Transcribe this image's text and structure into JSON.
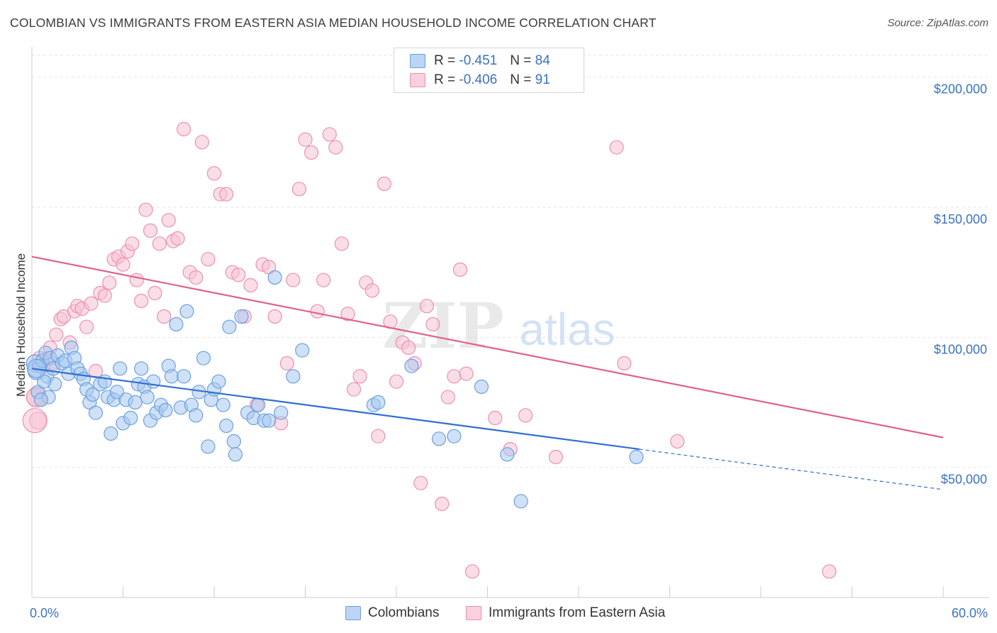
{
  "title": "COLOMBIAN VS IMMIGRANTS FROM EASTERN ASIA MEDIAN HOUSEHOLD INCOME CORRELATION CHART",
  "source": "Source: ZipAtlas.com",
  "watermark": {
    "zip": "ZIP",
    "atlas": "atlas"
  },
  "legend": {
    "rows": [
      {
        "r_label": "R = ",
        "r_value": "-0.451",
        "n_label": "N = ",
        "n_value": "84"
      },
      {
        "r_label": "R = ",
        "r_value": "-0.406",
        "n_label": "N = ",
        "n_value": "91"
      }
    ]
  },
  "colors": {
    "blue_fill": "#a8c8f0",
    "blue_stroke": "#6a9fe0",
    "blue_line": "#2f6fd0",
    "pink_fill": "#f6c3d3",
    "pink_stroke": "#ee8fae",
    "pink_line": "#e0608e",
    "tick_text": "#3a72c4",
    "grid": "#e6e6e6"
  },
  "chart_data": {
    "type": "scatter",
    "title": "COLOMBIAN VS IMMIGRANTS FROM EASTERN ASIA MEDIAN HOUSEHOLD INCOME CORRELATION CHART",
    "xlabel": "",
    "ylabel": "Median Household Income",
    "xlim": [
      0,
      60
    ],
    "ylim": [
      0,
      210000
    ],
    "x_tick_labels": [
      "0.0%",
      "60.0%"
    ],
    "y_ticks": [
      50000,
      100000,
      150000,
      200000
    ],
    "y_tick_labels": [
      "$50,000",
      "$100,000",
      "$150,000",
      "$200,000"
    ],
    "grid": true,
    "legend_placement": "top-center",
    "series": [
      {
        "name": "Colombians",
        "color": "#6a9fe0",
        "trend": {
          "x": [
            0,
            40
          ],
          "y": [
            88000,
            57000
          ],
          "dashed_to": [
            60,
            41500
          ]
        },
        "points": [
          [
            0.2,
            90000
          ],
          [
            0.3,
            87000
          ],
          [
            0.5,
            89000
          ],
          [
            0.7,
            91000
          ],
          [
            0.9,
            94000
          ],
          [
            1.0,
            85000
          ],
          [
            1.2,
            92000
          ],
          [
            1.4,
            88000
          ],
          [
            1.5,
            82000
          ],
          [
            1.7,
            93000
          ],
          [
            2.0,
            90000
          ],
          [
            2.2,
            91000
          ],
          [
            2.4,
            86000
          ],
          [
            2.6,
            96000
          ],
          [
            2.8,
            92000
          ],
          [
            3.0,
            88000
          ],
          [
            3.2,
            86000
          ],
          [
            3.4,
            84000
          ],
          [
            3.6,
            80000
          ],
          [
            3.8,
            75000
          ],
          [
            4.0,
            78000
          ],
          [
            4.2,
            71000
          ],
          [
            4.5,
            82000
          ],
          [
            4.8,
            83000
          ],
          [
            5.0,
            77000
          ],
          [
            5.2,
            63000
          ],
          [
            5.4,
            76000
          ],
          [
            5.6,
            79000
          ],
          [
            5.8,
            88000
          ],
          [
            6.0,
            67000
          ],
          [
            6.2,
            76000
          ],
          [
            6.5,
            69000
          ],
          [
            6.8,
            75000
          ],
          [
            7.0,
            82000
          ],
          [
            7.2,
            88000
          ],
          [
            7.4,
            81000
          ],
          [
            7.6,
            77000
          ],
          [
            7.8,
            68000
          ],
          [
            8.0,
            83000
          ],
          [
            8.2,
            71000
          ],
          [
            8.5,
            74000
          ],
          [
            8.8,
            72000
          ],
          [
            9.0,
            89000
          ],
          [
            9.2,
            85000
          ],
          [
            9.5,
            105000
          ],
          [
            9.8,
            73000
          ],
          [
            10.0,
            85000
          ],
          [
            10.2,
            110000
          ],
          [
            10.5,
            74000
          ],
          [
            10.8,
            70000
          ],
          [
            11.0,
            79000
          ],
          [
            11.3,
            92000
          ],
          [
            11.6,
            58000
          ],
          [
            11.8,
            76000
          ],
          [
            12.0,
            80000
          ],
          [
            12.3,
            83000
          ],
          [
            12.6,
            74000
          ],
          [
            12.8,
            66000
          ],
          [
            13.0,
            104000
          ],
          [
            13.3,
            60000
          ],
          [
            13.4,
            55000
          ],
          [
            13.8,
            108000
          ],
          [
            14.2,
            71000
          ],
          [
            14.6,
            69000
          ],
          [
            14.9,
            74000
          ],
          [
            15.3,
            68000
          ],
          [
            15.6,
            68000
          ],
          [
            16.0,
            123000
          ],
          [
            16.4,
            71000
          ],
          [
            17.2,
            85000
          ],
          [
            17.8,
            95000
          ],
          [
            22.5,
            74000
          ],
          [
            22.8,
            75000
          ],
          [
            25.0,
            89000
          ],
          [
            26.8,
            61000
          ],
          [
            27.8,
            62000
          ],
          [
            29.6,
            81000
          ],
          [
            31.3,
            55000
          ],
          [
            32.2,
            37000
          ],
          [
            39.8,
            54000
          ],
          [
            0.4,
            79000
          ],
          [
            1.1,
            77000
          ],
          [
            0.8,
            83000
          ],
          [
            0.6,
            76000
          ]
        ]
      },
      {
        "name": "Immigrants from Eastern Asia",
        "color": "#ee8fae",
        "trend": {
          "x": [
            0,
            60
          ],
          "y": [
            131000,
            61500
          ]
        },
        "points": [
          [
            0.2,
            77000
          ],
          [
            0.4,
            68000
          ],
          [
            0.5,
            92000
          ],
          [
            0.8,
            89000
          ],
          [
            1.0,
            92000
          ],
          [
            1.2,
            96000
          ],
          [
            1.4,
            90000
          ],
          [
            1.6,
            101000
          ],
          [
            1.9,
            107000
          ],
          [
            2.1,
            108000
          ],
          [
            2.5,
            98000
          ],
          [
            2.8,
            110000
          ],
          [
            3.0,
            112000
          ],
          [
            3.3,
            111000
          ],
          [
            3.6,
            104000
          ],
          [
            3.9,
            113000
          ],
          [
            4.2,
            87000
          ],
          [
            4.5,
            117000
          ],
          [
            4.8,
            116000
          ],
          [
            5.1,
            121000
          ],
          [
            5.4,
            130000
          ],
          [
            5.7,
            131000
          ],
          [
            6.0,
            128000
          ],
          [
            6.3,
            133000
          ],
          [
            6.6,
            136000
          ],
          [
            6.9,
            122000
          ],
          [
            7.2,
            114000
          ],
          [
            7.5,
            149000
          ],
          [
            7.8,
            141000
          ],
          [
            8.1,
            117000
          ],
          [
            8.4,
            136000
          ],
          [
            8.7,
            108000
          ],
          [
            9.0,
            145000
          ],
          [
            9.3,
            137000
          ],
          [
            9.6,
            138000
          ],
          [
            10.0,
            180000
          ],
          [
            10.4,
            125000
          ],
          [
            10.8,
            123000
          ],
          [
            11.2,
            175000
          ],
          [
            11.6,
            130000
          ],
          [
            12.0,
            163000
          ],
          [
            12.4,
            155000
          ],
          [
            12.8,
            155000
          ],
          [
            13.2,
            125000
          ],
          [
            13.6,
            124000
          ],
          [
            14.0,
            108000
          ],
          [
            14.4,
            120000
          ],
          [
            14.8,
            74000
          ],
          [
            15.2,
            128000
          ],
          [
            15.6,
            127000
          ],
          [
            16.0,
            108000
          ],
          [
            16.4,
            67000
          ],
          [
            16.8,
            90000
          ],
          [
            17.2,
            122000
          ],
          [
            17.6,
            157000
          ],
          [
            18.0,
            176000
          ],
          [
            18.4,
            171000
          ],
          [
            18.8,
            110000
          ],
          [
            19.2,
            122000
          ],
          [
            19.6,
            178000
          ],
          [
            20.0,
            173000
          ],
          [
            20.4,
            136000
          ],
          [
            20.8,
            109000
          ],
          [
            21.2,
            80000
          ],
          [
            21.6,
            85000
          ],
          [
            22.0,
            121000
          ],
          [
            22.4,
            118000
          ],
          [
            22.8,
            62000
          ],
          [
            23.2,
            159000
          ],
          [
            23.6,
            106000
          ],
          [
            24.0,
            83000
          ],
          [
            24.4,
            98000
          ],
          [
            24.8,
            96000
          ],
          [
            25.2,
            90000
          ],
          [
            25.6,
            44000
          ],
          [
            26.0,
            112000
          ],
          [
            26.4,
            105000
          ],
          [
            27.0,
            36000
          ],
          [
            27.4,
            77000
          ],
          [
            27.8,
            85000
          ],
          [
            28.2,
            126000
          ],
          [
            28.6,
            86000
          ],
          [
            29.0,
            10000
          ],
          [
            30.5,
            69000
          ],
          [
            31.5,
            57000
          ],
          [
            32.5,
            70000
          ],
          [
            34.5,
            54000
          ],
          [
            38.5,
            173000
          ],
          [
            39.0,
            90000
          ],
          [
            42.5,
            60000
          ],
          [
            52.5,
            10000
          ]
        ]
      }
    ]
  }
}
